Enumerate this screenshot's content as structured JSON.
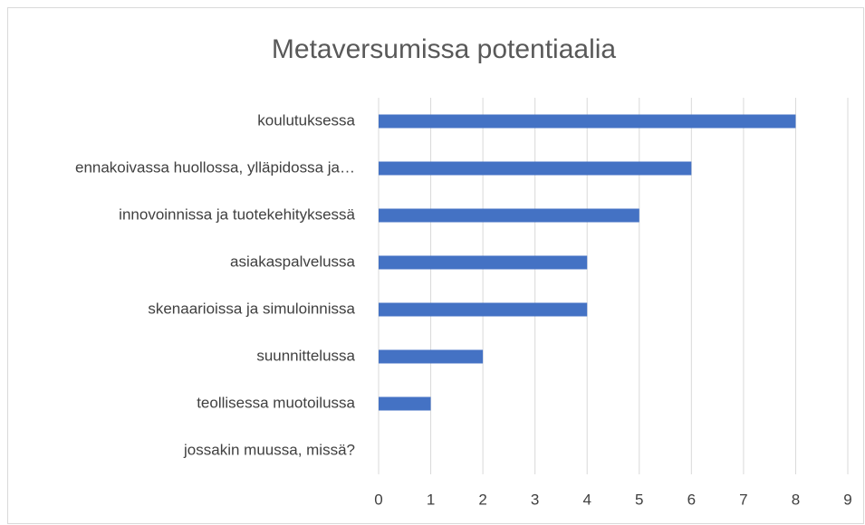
{
  "chart_data": {
    "type": "bar",
    "orientation": "horizontal",
    "title": "Metaversumissa potentiaalia",
    "categories": [
      "koulutuksessa",
      "ennakoivassa huollossa, ylläpidossa ja…",
      "innovoinnissa ja tuotekehityksessä",
      "asiakaspalvelussa",
      "skenaarioissa ja simuloinnissa",
      "suunnittelussa",
      "teollisessa muotoilussa",
      "jossakin muussa, missä?"
    ],
    "values": [
      8,
      6,
      5,
      4,
      4,
      2,
      1,
      0
    ],
    "color": "#4472c4",
    "xlim": [
      0,
      9
    ],
    "xticks": [
      0,
      1,
      2,
      3,
      4,
      5,
      6,
      7,
      8,
      9
    ],
    "grid": true
  }
}
